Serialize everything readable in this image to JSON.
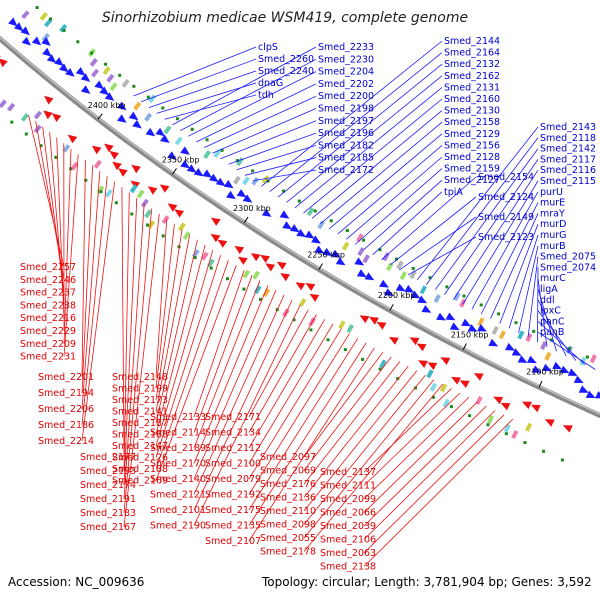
{
  "title": "Sinorhizobium medicae WSM419, complete genome",
  "footer": {
    "accession": "Accession: NC_009636",
    "summary": "Topology: circular; Length: 3,781,904 bp; Genes: 3,592"
  },
  "scale_labels": [
    "2400 kbp",
    "2350 kbp",
    "2300 kbp",
    "2250 kbp",
    "2200 kbp",
    "2150 kbp",
    "2100 kbp"
  ],
  "colors": {
    "forward": "#1a1aff",
    "reverse": "#ee1111",
    "backbone": "#8a8a8a",
    "tick": "#1a8a1a"
  },
  "forward_labels": [
    "clpS",
    "Smed_2260",
    "Smed_2240",
    "dnaG",
    "tdh",
    "Smed_2233",
    "Smed_2230",
    "Smed_2204",
    "Smed_2202",
    "Smed_2200",
    "Smed_2198",
    "Smed_2197",
    "Smed_2196",
    "Smed_2182",
    "Smed_2185",
    "Smed_2172",
    "Smed_2144",
    "Smed_2164",
    "Smed_2132",
    "Smed_2162",
    "Smed_2131",
    "Smed_2160",
    "Smed_2130",
    "Smed_2158",
    "Smed_2129",
    "Smed_2156",
    "Smed_2128",
    "Smed_2159",
    "Smed_2127",
    "tpiA",
    "Smed_2154",
    "Smed_2124",
    "Smed_2149",
    "Smed_2123",
    "Smed_2143",
    "Smed_2118",
    "Smed_2142",
    "Smed_2117",
    "Smed_2116",
    "Smed_2115",
    "purU",
    "murE",
    "mraY",
    "murD",
    "murG",
    "murB",
    "Smed_2075",
    "Smed_2074",
    "murC",
    "ligA",
    "ddl",
    "lpxC",
    "panC",
    "panB"
  ],
  "reverse_labels": [
    "Smed_2257",
    "Smed_2246",
    "Smed_2237",
    "Smed_2238",
    "Smed_2216",
    "Smed_2229",
    "Smed_2209",
    "Smed_2231",
    "Smed_2201",
    "Smed_2194",
    "Smed_2206",
    "Smed_2186",
    "Smed_2214",
    "Smed_2177",
    "Smed_2193",
    "Smed_2174",
    "Smed_2191",
    "Smed_2183",
    "Smed_2167",
    "Smed_2148",
    "Smed_2199",
    "Smed_2173",
    "Smed_2141",
    "Smed_2187",
    "Smed_2168",
    "Smed_2147",
    "Smed_2126",
    "Smed_2188",
    "Smed_2169",
    "Smed_2133",
    "Smed_2114",
    "Smed_2189",
    "Smed_2170",
    "Smed_2140",
    "Smed_2121",
    "Smed_2101",
    "Smed_2190",
    "Smed_2171",
    "Smed_2134",
    "Smed_2112",
    "Smed_2100",
    "Smed_2079",
    "Smed_2192",
    "Smed_2175",
    "Smed_2135",
    "Smed_2107",
    "Smed_2097",
    "Smed_2069",
    "Smed_2176",
    "Smed_2136",
    "Smed_2110",
    "Smed_2098",
    "Smed_2055",
    "Smed_2178",
    "Smed_2137",
    "Smed_2111",
    "Smed_2099",
    "Smed_2066",
    "Smed_2039",
    "Smed_2106",
    "Smed_2063",
    "Smed_2138"
  ]
}
